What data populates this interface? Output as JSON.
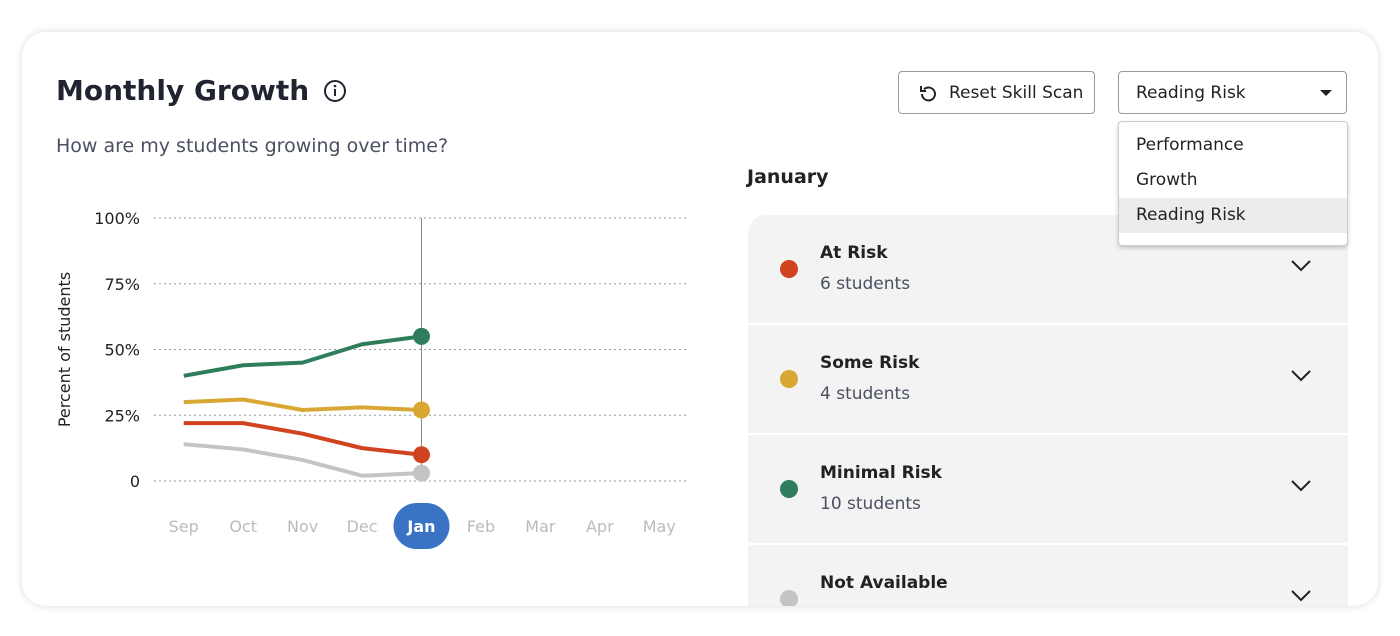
{
  "header": {
    "title": "Monthly Growth",
    "subtitle": "How are my students growing over time?"
  },
  "reset_button": {
    "label": "Reset Skill Scan"
  },
  "dropdown": {
    "selected": "Reading Risk",
    "options": [
      "Performance",
      "Growth",
      "Reading Risk"
    ],
    "highlighted_index": 2
  },
  "chart_data": {
    "type": "line",
    "y_label": "Percent of students",
    "categories": [
      "Sep",
      "Oct",
      "Nov",
      "Dec",
      "Jan",
      "Feb",
      "Mar",
      "Apr",
      "May"
    ],
    "selected_index": 4,
    "series": [
      {
        "name": "At Risk",
        "color": "#d1421f",
        "values": [
          22,
          22,
          18,
          12.5,
          10,
          null,
          null,
          null,
          null
        ]
      },
      {
        "name": "Some Risk",
        "color": "#d9a834",
        "values": [
          30,
          31,
          27,
          28,
          27,
          null,
          null,
          null,
          null
        ]
      },
      {
        "name": "Minimal Risk",
        "color": "#2e7d5b",
        "values": [
          40,
          44,
          45,
          52,
          55,
          null,
          null,
          null,
          null
        ]
      },
      {
        "name": "Not Available",
        "color": "#c4c4c4",
        "values": [
          14,
          12,
          8,
          2,
          3,
          null,
          null,
          null,
          null
        ]
      }
    ],
    "ylim": [
      0,
      100
    ],
    "yticks": [
      0,
      {
        "value": 25,
        "label": "25%"
      },
      {
        "value": 50,
        "label": "50%"
      },
      {
        "value": 75,
        "label": "75%"
      },
      {
        "value": 100,
        "label": "100%"
      }
    ],
    "grid": true
  },
  "panel": {
    "month": "January",
    "items": [
      {
        "count": "6 students"
      },
      {
        "count": "4 students"
      },
      {
        "count": "10 students"
      },
      {
        "count": ""
      }
    ]
  }
}
